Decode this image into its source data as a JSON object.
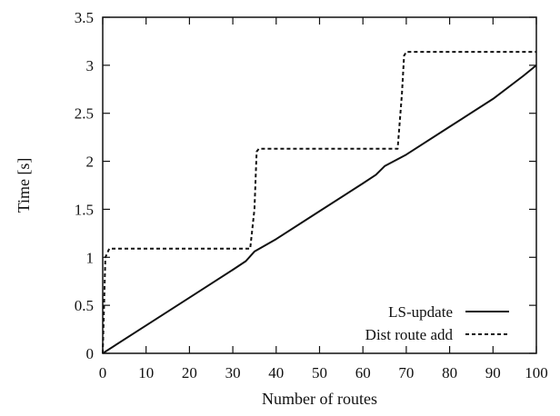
{
  "chart_data": {
    "type": "line",
    "title": "",
    "xlabel": "Number of routes",
    "ylabel": "Time [s]",
    "xlim": [
      0,
      100
    ],
    "ylim": [
      0,
      3.5
    ],
    "xticks": [
      0,
      10,
      20,
      30,
      40,
      50,
      60,
      70,
      80,
      90,
      100
    ],
    "yticks": [
      0,
      0.5,
      1,
      1.5,
      2,
      2.5,
      3,
      3.5
    ],
    "xtick_labels": [
      "0",
      "10",
      "20",
      "30",
      "40",
      "50",
      "60",
      "70",
      "80",
      "90",
      "100"
    ],
    "ytick_labels": [
      "0",
      "0.5",
      "1",
      "1.5",
      "2",
      "2.5",
      "3",
      "3.5"
    ],
    "grid": false,
    "legend_position": "bottom-right",
    "series": [
      {
        "name": "LS-update",
        "style": "solid",
        "color": "#111111",
        "x": [
          0,
          10,
          20,
          30,
          33,
          35,
          40,
          50,
          60,
          63,
          65,
          70,
          80,
          90,
          97,
          100
        ],
        "y": [
          0,
          0.29,
          0.58,
          0.87,
          0.96,
          1.06,
          1.19,
          1.48,
          1.77,
          1.86,
          1.95,
          2.07,
          2.36,
          2.65,
          2.89,
          3.0
        ]
      },
      {
        "name": "Dist route add",
        "style": "dashed",
        "color": "#111111",
        "x": [
          0,
          0.6,
          1.5,
          34,
          35,
          35.5,
          36,
          68,
          69,
          69.5,
          70,
          100
        ],
        "y": [
          0,
          1.0,
          1.09,
          1.09,
          1.5,
          2.1,
          2.13,
          2.13,
          2.7,
          3.1,
          3.14,
          3.14
        ]
      }
    ]
  }
}
